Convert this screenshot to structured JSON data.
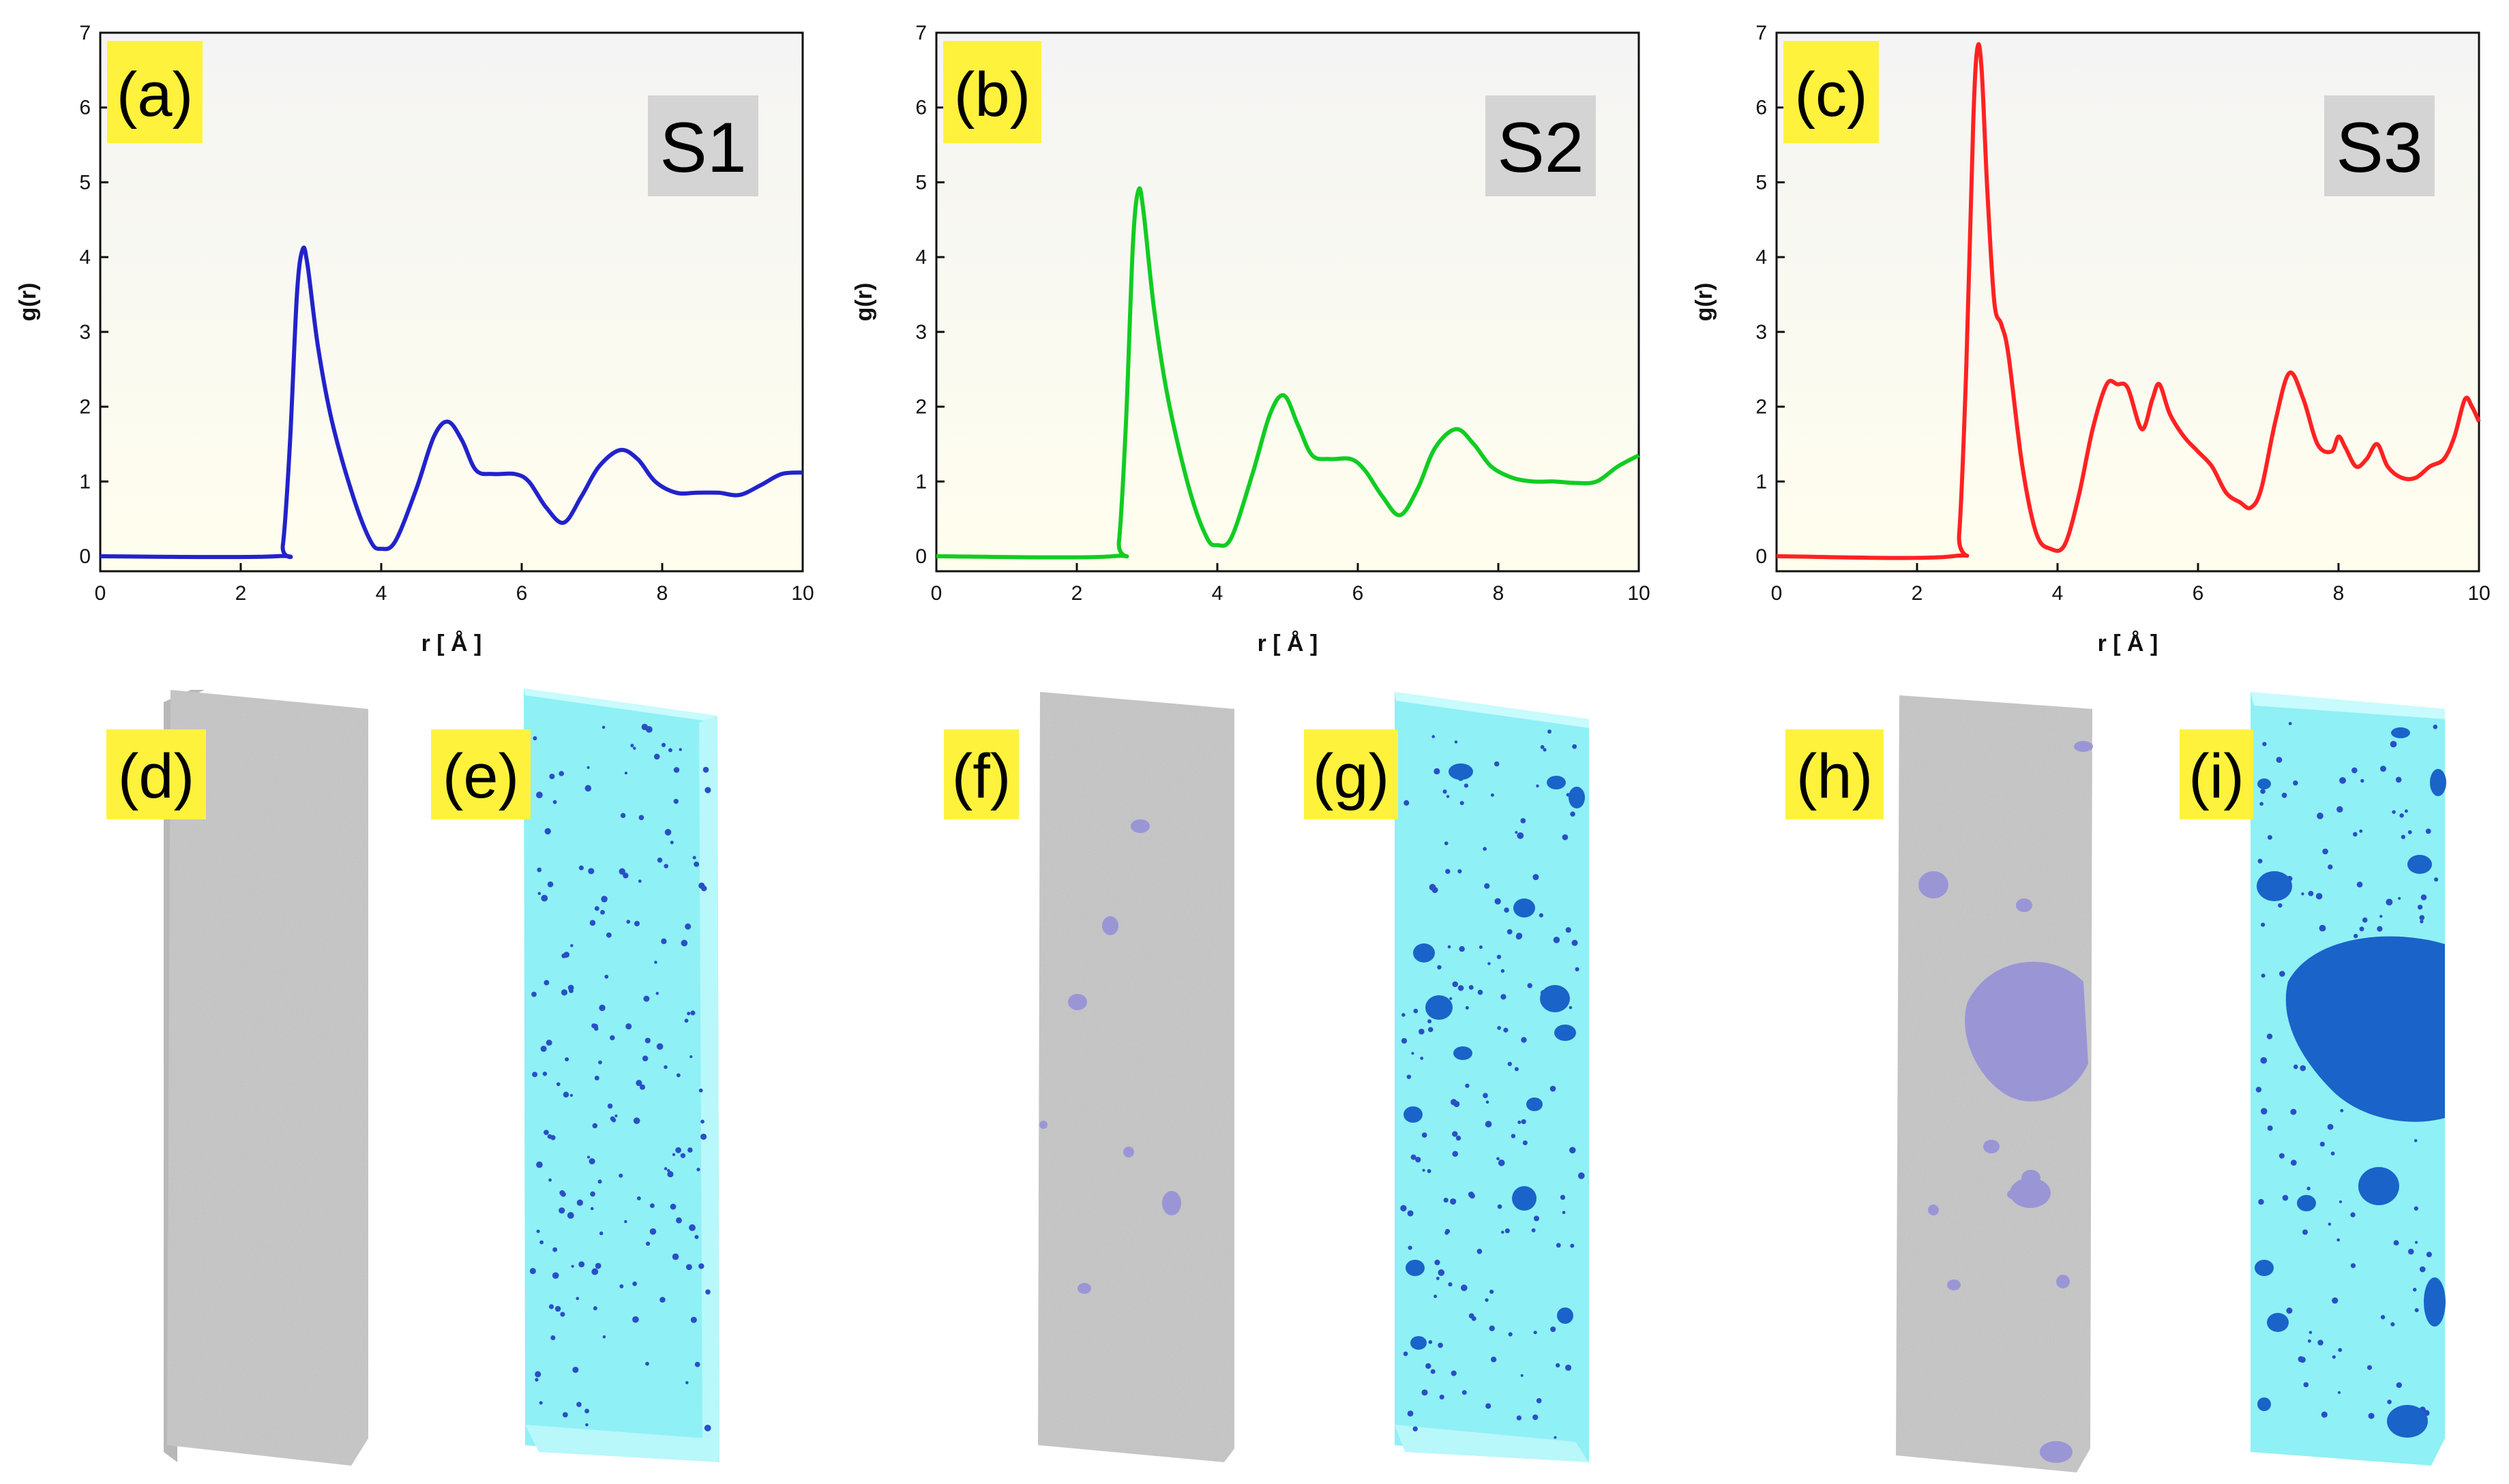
{
  "colors": {
    "tag_bg": "#fff23d",
    "system_label_bg": "#d4d4d4",
    "slab_gray": "#c6c6c6",
    "slab_cyan": "#8ff0f5",
    "cluster_purple": "#9a96d6",
    "cluster_blue": "#1a63c9"
  },
  "chart_data": [
    {
      "type": "line",
      "tag": "(a)",
      "system": "S1",
      "xlabel": "r   [ Å ]",
      "ylabel": "g(r)",
      "xlim": [
        0,
        10
      ],
      "ylim": [
        -0.2,
        7
      ],
      "xticks": [
        "0",
        "2",
        "4",
        "6",
        "8",
        "10"
      ],
      "yticks": [
        "0",
        "1",
        "2",
        "3",
        "4",
        "5",
        "6",
        "7"
      ],
      "color": "#2222cc",
      "x": [
        0,
        2.5,
        2.6,
        2.7,
        2.8,
        2.88,
        2.95,
        3.1,
        3.3,
        3.6,
        3.85,
        4.0,
        4.2,
        4.5,
        4.75,
        4.95,
        5.15,
        5.35,
        5.6,
        5.9,
        6.1,
        6.35,
        6.6,
        6.85,
        7.1,
        7.4,
        7.65,
        7.9,
        8.2,
        8.5,
        8.8,
        9.1,
        9.4,
        9.7,
        10
      ],
      "y": [
        0,
        0,
        0.15,
        1.5,
        3.5,
        4.1,
        3.9,
        2.8,
        1.8,
        0.8,
        0.2,
        0.1,
        0.2,
        0.9,
        1.6,
        1.8,
        1.55,
        1.15,
        1.1,
        1.1,
        1.0,
        0.65,
        0.45,
        0.8,
        1.2,
        1.42,
        1.3,
        1.0,
        0.85,
        0.85,
        0.85,
        0.82,
        0.95,
        1.1,
        1.12
      ]
    },
    {
      "type": "line",
      "tag": "(b)",
      "system": "S2",
      "xlabel": "r   [ Å ]",
      "ylabel": "g(r)",
      "xlim": [
        0,
        10
      ],
      "ylim": [
        -0.2,
        7
      ],
      "xticks": [
        "0",
        "2",
        "4",
        "6",
        "8",
        "10"
      ],
      "yticks": [
        "0",
        "1",
        "2",
        "3",
        "4",
        "5",
        "6",
        "7"
      ],
      "color": "#11cc22",
      "x": [
        0,
        2.5,
        2.6,
        2.7,
        2.8,
        2.88,
        2.95,
        3.1,
        3.3,
        3.6,
        3.85,
        4.0,
        4.2,
        4.5,
        4.75,
        4.95,
        5.15,
        5.35,
        5.6,
        5.9,
        6.1,
        6.35,
        6.6,
        6.85,
        7.1,
        7.4,
        7.65,
        7.9,
        8.2,
        8.5,
        8.8,
        9.1,
        9.4,
        9.7,
        10
      ],
      "y": [
        0,
        0,
        0.2,
        1.8,
        4.2,
        4.9,
        4.6,
        3.3,
        2.1,
        0.9,
        0.25,
        0.15,
        0.25,
        1.1,
        1.9,
        2.15,
        1.75,
        1.35,
        1.3,
        1.3,
        1.15,
        0.8,
        0.55,
        0.9,
        1.45,
        1.7,
        1.5,
        1.2,
        1.05,
        1.0,
        1.0,
        0.98,
        1.0,
        1.2,
        1.35
      ]
    },
    {
      "type": "line",
      "tag": "(c)",
      "system": "S3",
      "xlabel": "r   [ Å ]",
      "ylabel": "g(r)",
      "xlim": [
        0,
        10
      ],
      "ylim": [
        -0.2,
        7
      ],
      "xticks": [
        "0",
        "2",
        "4",
        "6",
        "8",
        "10"
      ],
      "yticks": [
        "0",
        "1",
        "2",
        "3",
        "4",
        "5",
        "6",
        "7"
      ],
      "color": "#ff2222",
      "x": [
        0,
        2.5,
        2.6,
        2.7,
        2.8,
        2.86,
        2.92,
        3.0,
        3.1,
        3.2,
        3.3,
        3.5,
        3.7,
        3.9,
        4.1,
        4.3,
        4.5,
        4.7,
        4.85,
        5.0,
        5.2,
        5.35,
        5.45,
        5.6,
        5.8,
        6.0,
        6.2,
        6.4,
        6.6,
        6.75,
        6.9,
        7.1,
        7.3,
        7.5,
        7.7,
        7.9,
        8.0,
        8.1,
        8.25,
        8.4,
        8.55,
        8.7,
        8.9,
        9.1,
        9.3,
        9.5,
        9.65,
        9.8,
        9.9,
        10
      ],
      "y": [
        0,
        0,
        0.3,
        2.5,
        5.8,
        6.8,
        6.5,
        4.9,
        3.4,
        3.1,
        2.7,
        1.2,
        0.3,
        0.1,
        0.15,
        0.8,
        1.7,
        2.3,
        2.3,
        2.25,
        1.7,
        2.1,
        2.3,
        1.9,
        1.6,
        1.4,
        1.2,
        0.85,
        0.72,
        0.65,
        0.9,
        1.8,
        2.45,
        2.1,
        1.5,
        1.4,
        1.6,
        1.45,
        1.2,
        1.3,
        1.5,
        1.2,
        1.05,
        1.05,
        1.2,
        1.3,
        1.6,
        2.1,
        2.0,
        1.8
      ]
    }
  ],
  "snapshots": [
    {
      "tag": "(d)",
      "style": "gray"
    },
    {
      "tag": "(e)",
      "style": "cyan"
    },
    {
      "tag": "(f)",
      "style": "gray"
    },
    {
      "tag": "(g)",
      "style": "cyan"
    },
    {
      "tag": "(h)",
      "style": "gray"
    },
    {
      "tag": "(i)",
      "style": "cyan"
    }
  ]
}
